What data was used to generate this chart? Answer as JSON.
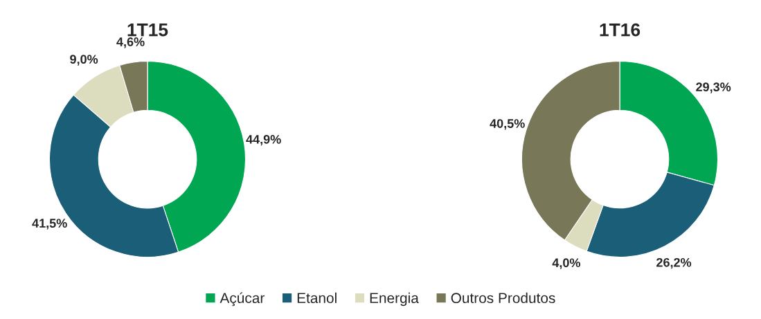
{
  "chart_data": [
    {
      "type": "donut",
      "title": "1T15",
      "categories": [
        "Açúcar",
        "Etanol",
        "Energia",
        "Outros Produtos"
      ],
      "values": [
        44.9,
        41.5,
        9.0,
        4.6
      ],
      "colors": [
        "#00a651",
        "#1b5e78",
        "#dcdcbe",
        "#787858"
      ],
      "value_labels": [
        "44,9%",
        "41,5%",
        "9,0%",
        "4,6%"
      ],
      "legend": "bottom"
    },
    {
      "type": "donut",
      "title": "1T16",
      "categories": [
        null,
        null,
        null,
        null
      ],
      "values": [
        29.3,
        26.2,
        4.0,
        40.5
      ],
      "colors": [
        "#00a651",
        "#1b5e78",
        "#dcdcbe",
        "#787858"
      ],
      "value_labels": [
        "29,3%",
        "26,2%",
        "4,0%",
        "40,5%"
      ]
    }
  ]
}
